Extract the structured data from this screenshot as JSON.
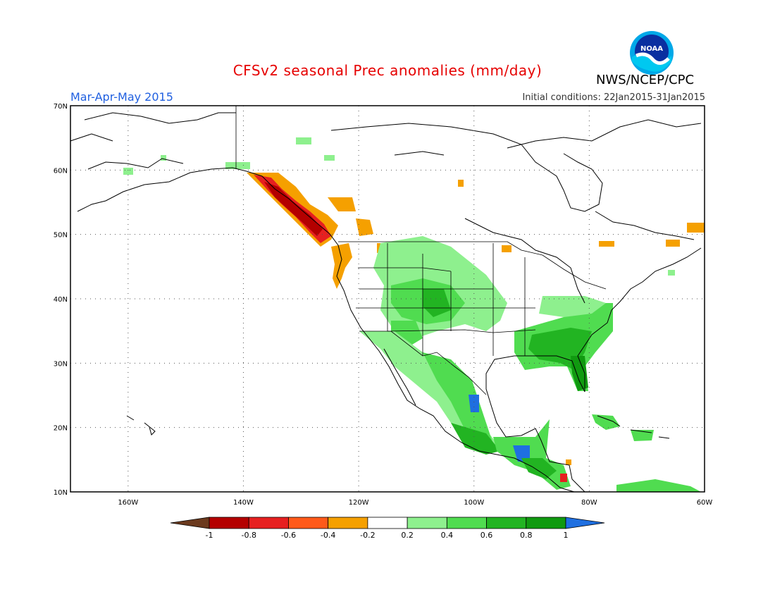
{
  "title": "CFSv2 seasonal Prec anomalies (mm/day)",
  "season": "Mar-Apr-May 2015",
  "initial_conditions": "Initial conditions: 22Jan2015-31Jan2015",
  "agency": "NWS/NCEP/CPC",
  "logo_text": "NOAA",
  "map": {
    "lat_labels": [
      "70N",
      "60N",
      "50N",
      "40N",
      "30N",
      "20N",
      "10N"
    ],
    "lon_labels": [
      "160W",
      "140W",
      "120W",
      "100W",
      "80W",
      "60W"
    ],
    "lat_values": [
      70,
      60,
      50,
      40,
      30,
      20,
      10
    ],
    "lon_values": [
      -160,
      -140,
      -120,
      -100,
      -80,
      -60
    ],
    "lon_range": [
      -170,
      -60
    ],
    "lat_range": [
      10,
      70
    ],
    "gridlines": "dotted"
  },
  "colorbar": {
    "labels": [
      "-1",
      "-0.8",
      "-0.6",
      "-0.4",
      "-0.2",
      "0.2",
      "0.4",
      "0.6",
      "0.8",
      "1"
    ],
    "colors": [
      "#6b3a1e",
      "#b40000",
      "#e62020",
      "#ff5a1a",
      "#f5a000",
      "#ffffff",
      "#8ef08e",
      "#50dc50",
      "#22b422",
      "#109a10",
      "#1f6fe0"
    ]
  }
}
